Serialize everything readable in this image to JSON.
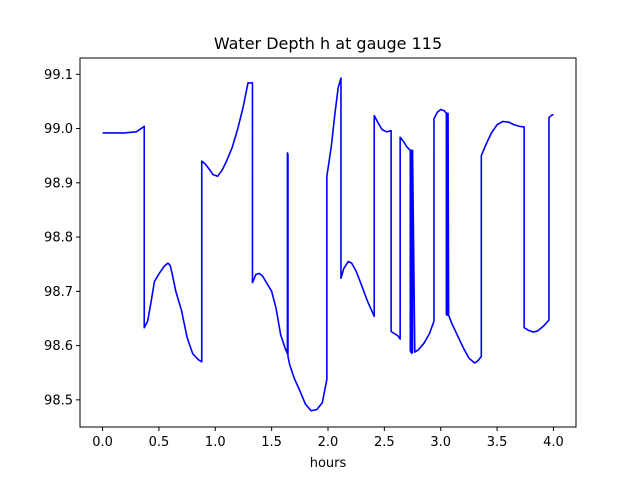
{
  "chart_data": {
    "type": "line",
    "title": "Water Depth h at gauge 115",
    "xlabel": "hours",
    "ylabel": "",
    "xlim": [
      -0.2,
      4.2
    ],
    "ylim": [
      98.45,
      99.13
    ],
    "x_ticks": [
      0.0,
      0.5,
      1.0,
      1.5,
      2.0,
      2.5,
      3.0,
      3.5,
      4.0
    ],
    "x_tick_labels": [
      "0.0",
      "0.5",
      "1.0",
      "1.5",
      "2.0",
      "2.5",
      "3.0",
      "3.5",
      "4.0"
    ],
    "y_ticks": [
      98.5,
      98.6,
      98.7,
      98.8,
      98.9,
      99.0,
      99.1
    ],
    "y_tick_labels": [
      "98.5",
      "98.6",
      "98.7",
      "98.8",
      "98.9",
      "99.0",
      "99.1"
    ],
    "grid": false,
    "legend": "none",
    "color": "#0000ff",
    "series": [
      {
        "x": [
          0.0,
          0.1,
          0.2,
          0.3,
          0.37,
          0.37,
          0.4,
          0.43,
          0.46,
          0.5,
          0.55,
          0.58,
          0.6,
          0.62,
          0.65,
          0.7,
          0.75,
          0.8,
          0.85,
          0.88,
          0.88,
          0.91,
          0.95,
          0.98,
          1.02,
          1.06,
          1.1,
          1.15,
          1.2,
          1.25,
          1.29,
          1.33,
          1.33,
          1.36,
          1.39,
          1.42,
          1.46,
          1.5,
          1.54,
          1.58,
          1.62,
          1.64,
          1.64,
          1.645,
          1.645,
          1.66,
          1.7,
          1.75,
          1.8,
          1.85,
          1.9,
          1.95,
          1.99,
          1.99,
          2.03,
          2.06,
          2.09,
          2.115,
          2.115,
          2.14,
          2.18,
          2.21,
          2.25,
          2.3,
          2.35,
          2.41,
          2.41,
          2.44,
          2.48,
          2.52,
          2.56,
          2.56,
          2.62,
          2.64,
          2.64,
          2.67,
          2.7,
          2.73,
          2.73,
          2.735,
          2.74,
          2.74,
          2.745,
          2.75,
          2.75,
          2.77,
          2.8,
          2.85,
          2.9,
          2.94,
          2.94,
          2.97,
          3.0,
          3.03,
          3.05,
          3.05,
          3.055,
          3.055,
          3.06,
          3.065,
          3.065,
          3.07,
          3.1,
          3.15,
          3.2,
          3.25,
          3.3,
          3.33,
          3.36,
          3.36,
          3.4,
          3.45,
          3.5,
          3.55,
          3.6,
          3.65,
          3.7,
          3.74,
          3.74,
          3.78,
          3.82,
          3.86,
          3.9,
          3.93,
          3.96,
          3.96,
          3.98,
          4.0
        ],
        "y": [
          98.992,
          98.992,
          98.992,
          98.994,
          99.004,
          98.633,
          98.645,
          98.68,
          98.718,
          98.732,
          98.747,
          98.752,
          98.748,
          98.73,
          98.7,
          98.665,
          98.615,
          98.585,
          98.574,
          98.57,
          98.94,
          98.935,
          98.924,
          98.915,
          98.912,
          98.923,
          98.94,
          98.965,
          99.0,
          99.042,
          99.084,
          99.084,
          98.716,
          98.731,
          98.733,
          98.728,
          98.714,
          98.7,
          98.668,
          98.62,
          98.595,
          98.585,
          98.955,
          98.952,
          98.58,
          98.565,
          98.54,
          98.517,
          98.492,
          98.48,
          98.482,
          98.495,
          98.538,
          98.912,
          98.968,
          99.025,
          99.075,
          99.093,
          98.724,
          98.742,
          98.755,
          98.752,
          98.737,
          98.71,
          98.682,
          98.654,
          99.024,
          99.012,
          98.998,
          98.994,
          98.996,
          98.626,
          98.618,
          98.612,
          98.984,
          98.976,
          98.966,
          98.96,
          98.59,
          98.588,
          98.96,
          98.588,
          98.586,
          98.588,
          98.96,
          98.588,
          98.592,
          98.604,
          98.622,
          98.645,
          99.018,
          99.03,
          99.035,
          99.033,
          99.028,
          98.658,
          98.656,
          99.028,
          99.028,
          98.656,
          99.028,
          98.656,
          98.64,
          98.618,
          98.596,
          98.577,
          98.568,
          98.572,
          98.58,
          98.95,
          98.97,
          98.992,
          99.007,
          99.013,
          99.012,
          99.007,
          99.004,
          99.003,
          98.633,
          98.628,
          98.625,
          98.627,
          98.634,
          98.64,
          98.647,
          99.02,
          99.024,
          99.026
        ]
      }
    ]
  }
}
